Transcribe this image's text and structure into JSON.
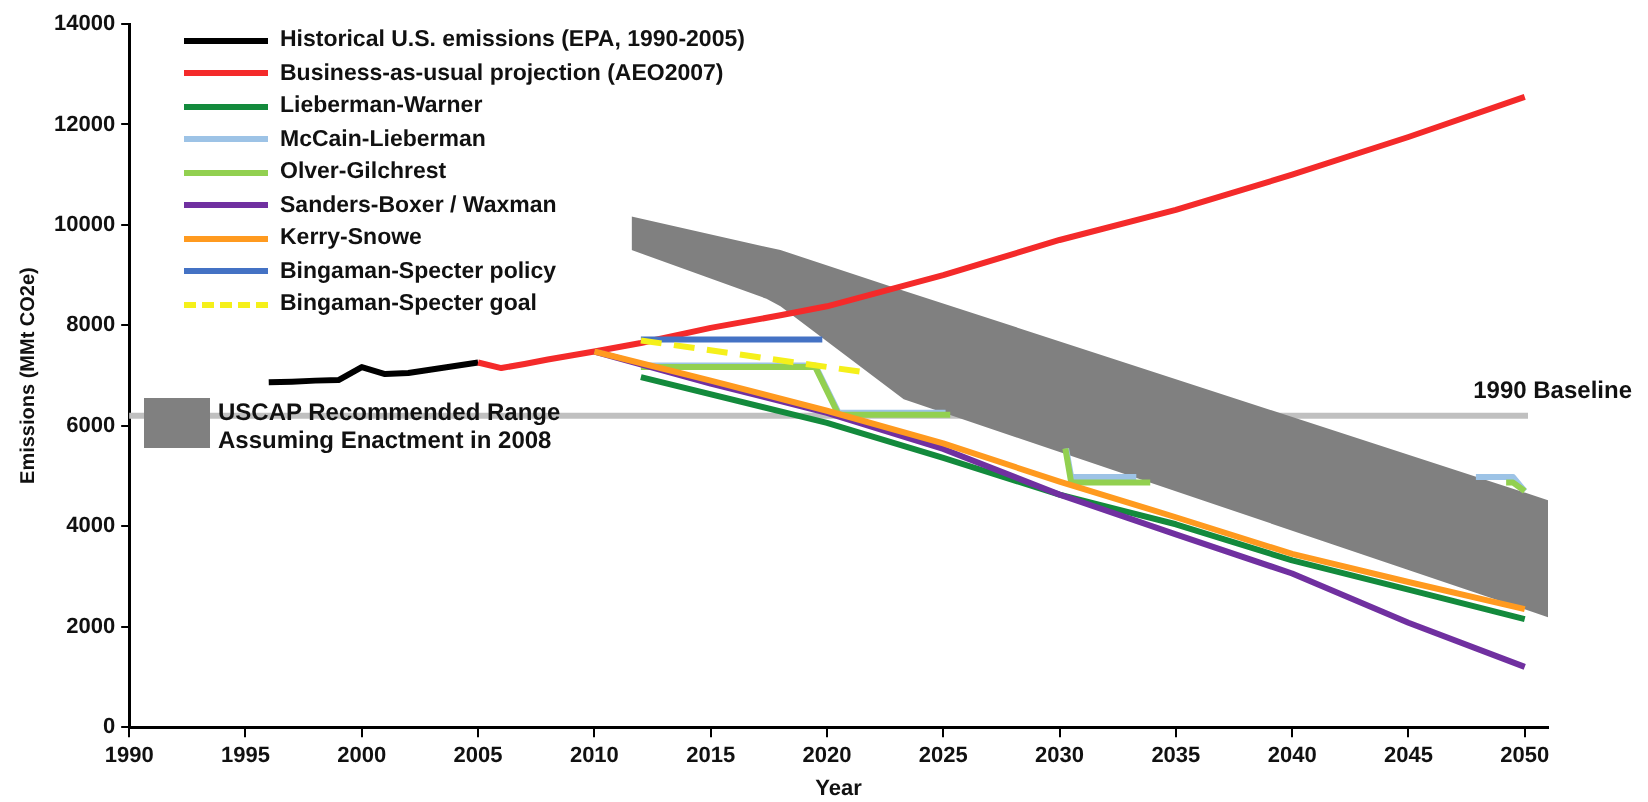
{
  "chart_data": {
    "type": "line",
    "xlabel": "Year",
    "ylabel": "Emissions (MMt CO2e)",
    "xlim": [
      1990,
      2051
    ],
    "ylim": [
      0,
      14000
    ],
    "xticks": [
      1990,
      1995,
      2000,
      2005,
      2010,
      2015,
      2020,
      2025,
      2030,
      2035,
      2040,
      2045,
      2050
    ],
    "yticks": [
      0,
      2000,
      4000,
      6000,
      8000,
      10000,
      12000,
      14000
    ],
    "grid": false,
    "legend": "top left",
    "ref_lines": [
      {
        "axis": "y",
        "value": 6200,
        "label": "1990 Baseline",
        "color": "#c0c0c0"
      }
    ],
    "series": [
      {
        "name": "Historical U.S. emissions (EPA, 1990-2005)",
        "color": "#000000",
        "x": [
          1996,
          1997,
          1998,
          1999,
          2000,
          2001,
          2002,
          2003,
          2004,
          2005
        ],
        "values": [
          6870,
          6880,
          6900,
          6910,
          7170,
          7030,
          7050,
          7120,
          7190,
          7260
        ]
      },
      {
        "name": "Business-as-usual projection (AEO2007)",
        "color": "#f42a2a",
        "x": [
          2005,
          2006,
          2007,
          2008,
          2009,
          2010,
          2012,
          2015,
          2018,
          2020,
          2025,
          2030,
          2035,
          2040,
          2045,
          2050
        ],
        "values": [
          7260,
          7150,
          7230,
          7320,
          7400,
          7480,
          7650,
          7950,
          8200,
          8380,
          9000,
          9700,
          10300,
          11000,
          11750,
          12550
        ]
      },
      {
        "name": "Lieberman-Warner",
        "color": "#138a3c",
        "x": [
          2012,
          2020,
          2025,
          2030,
          2035,
          2040,
          2045,
          2050
        ],
        "values": [
          6970,
          6060,
          5360,
          4630,
          4040,
          3320,
          2740,
          2150
        ]
      },
      {
        "name": "McCain-Lieberman",
        "color": "#9dc3e6",
        "x": [
          2012,
          2019.5,
          2020.5,
          2025.1,
          2027,
          2030.28,
          2030.5,
          2033.3,
          2040,
          2047.9,
          2049.5,
          2050
        ],
        "values": [
          7200,
          7200,
          6260,
          6260,
          null,
          5550,
          4980,
          4980,
          null,
          4980,
          4980,
          4700
        ]
      },
      {
        "name": "Olver-Gilchrest",
        "color": "#92d050",
        "x": [
          2012,
          2019.5,
          2020.5,
          2025.3,
          2027,
          2030.25,
          2030.5,
          2033.9,
          2040,
          2049.2,
          2049.5,
          2050
        ],
        "values": [
          7170,
          7170,
          6220,
          6220,
          null,
          5550,
          4870,
          4870,
          null,
          4870,
          4870,
          4700
        ]
      },
      {
        "name": "Sanders-Boxer / Waxman",
        "color": "#7030a0",
        "x": [
          2010,
          2015,
          2020,
          2025,
          2030,
          2035,
          2040,
          2045,
          2050
        ],
        "values": [
          7480,
          6840,
          6260,
          5540,
          4630,
          3840,
          3060,
          2080,
          1200
        ]
      },
      {
        "name": "Kerry-Snowe",
        "color": "#ff9a1f",
        "x": [
          2010,
          2015,
          2020,
          2025,
          2030,
          2035,
          2040,
          2045,
          2050
        ],
        "values": [
          7480,
          6900,
          6300,
          5650,
          4890,
          4180,
          3450,
          2890,
          2350
        ]
      },
      {
        "name": "Bingaman-Specter policy",
        "color": "#4472c4",
        "x": [
          2012,
          2019.8
        ],
        "values": [
          7720,
          7720
        ]
      },
      {
        "name": "Bingaman-Specter goal",
        "color": "#f5f01a",
        "line_style": "dashed",
        "x": [
          2012,
          2021.4
        ],
        "values": [
          7700,
          7080
        ]
      },
      {
        "name": "USCAP Recommended Range Assuming Enactment in 2008",
        "type": "area",
        "color": "#808080",
        "x": [
          2011.6,
          2017.4,
          2018,
          2023.3,
          2051
        ],
        "values": [
          null,
          null,
          null,
          null,
          null
        ],
        "lower": [
          9500,
          8530,
          8380,
          6530,
          2190
        ],
        "upper": [
          10170,
          9560,
          9500,
          8690,
          4520
        ]
      }
    ]
  }
}
